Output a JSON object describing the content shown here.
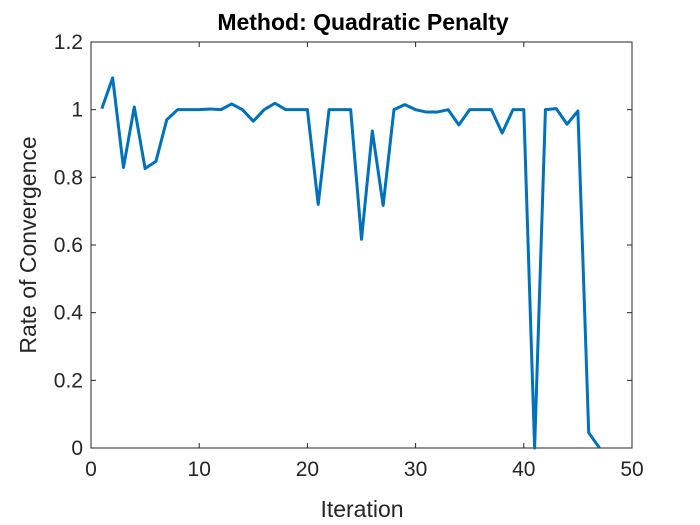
{
  "chart_data": {
    "type": "line",
    "title": "Method: Quadratic Penalty",
    "xlabel": "Iteration",
    "ylabel": "Rate of Convergence",
    "xlim": [
      0,
      50
    ],
    "ylim": [
      0,
      1.2
    ],
    "xticks": [
      0,
      10,
      20,
      30,
      40,
      50
    ],
    "yticks": [
      0,
      0.2,
      0.4,
      0.6,
      0.8,
      1,
      1.2
    ],
    "xtick_labels": [
      "0",
      "10",
      "20",
      "30",
      "40",
      "50"
    ],
    "ytick_labels": [
      "0",
      "0.2",
      "0.4",
      "0.6",
      "0.8",
      "1",
      "1.2"
    ],
    "grid": false,
    "series": [
      {
        "color": "#0072bd",
        "x": [
          1,
          2,
          3,
          4,
          5,
          6,
          7,
          8,
          9,
          10,
          11,
          12,
          13,
          14,
          15,
          16,
          17,
          18,
          19,
          20,
          21,
          22,
          23,
          24,
          25,
          26,
          27,
          28,
          29,
          30,
          31,
          32,
          33,
          34,
          35,
          36,
          37,
          38,
          39,
          40,
          41,
          42,
          43,
          44,
          45,
          46,
          47
        ],
        "y": [
          1.003,
          1.094,
          0.829,
          1.008,
          0.826,
          0.847,
          0.97,
          1.0,
          1.0,
          1.0,
          1.002,
          1.0,
          1.017,
          1.0,
          0.966,
          1.0,
          1.019,
          1.0,
          1.0,
          1.0,
          0.72,
          1.0,
          1.0,
          1.0,
          0.617,
          0.937,
          0.717,
          1.0,
          1.015,
          1.0,
          0.993,
          0.993,
          1.0,
          0.955,
          1.0,
          1.0,
          1.0,
          0.931,
          1.0,
          1.0,
          0.0,
          1.0,
          1.003,
          0.957,
          0.996,
          0.045,
          0.0
        ]
      }
    ]
  }
}
